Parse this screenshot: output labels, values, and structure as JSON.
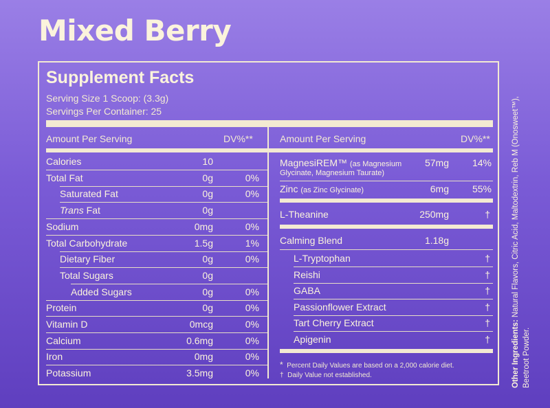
{
  "title": "Mixed Berry",
  "facts": {
    "heading": "Supplement Facts",
    "serving_size": "Serving Size 1 Scoop: (3.3g)",
    "servings_per_container": "Servings Per Container: 25"
  },
  "left": {
    "header_amount": "Amount Per Serving",
    "header_dv": "DV%**",
    "rows": [
      {
        "name": "Calories",
        "amount": "10",
        "dv": ""
      },
      {
        "name": "Total Fat",
        "amount": "0g",
        "dv": "0%"
      },
      {
        "name": "Saturated Fat",
        "amount": "0g",
        "dv": "0%"
      },
      {
        "name_italic": "Trans",
        "name_rest": " Fat",
        "amount": "0g",
        "dv": ""
      },
      {
        "name": "Sodium",
        "amount": "0mg",
        "dv": "0%"
      },
      {
        "name": "Total Carbohydrate",
        "amount": "1.5g",
        "dv": "1%"
      },
      {
        "name": "Dietary Fiber",
        "amount": "0g",
        "dv": "0%"
      },
      {
        "name": "Total Sugars",
        "amount": "0g",
        "dv": ""
      },
      {
        "name": "Added Sugars",
        "amount": "0g",
        "dv": "0%"
      },
      {
        "name": "Protein",
        "amount": "0g",
        "dv": "0%"
      },
      {
        "name": "Vitamin D",
        "amount": "0mcg",
        "dv": "0%"
      },
      {
        "name": "Calcium",
        "amount": "0.6mg",
        "dv": "0%"
      },
      {
        "name": "Iron",
        "amount": "0mg",
        "dv": "0%"
      },
      {
        "name": "Potassium",
        "amount": "3.5mg",
        "dv": "0%"
      }
    ]
  },
  "right": {
    "header_amount": "Amount Per Serving",
    "header_dv": "DV%**",
    "magnesium": {
      "name": "MagnesiREM™",
      "detail": "(as Magnesium",
      "detail2": "Glycinate, Magnesium Taurate)",
      "amount": "57mg",
      "dv": "14%"
    },
    "zinc": {
      "name": "Zinc",
      "detail": "(as Zinc Glycinate)",
      "amount": "6mg",
      "dv": "55%"
    },
    "theanine": {
      "name": "L-Theanine",
      "amount": "250mg",
      "dv": "†"
    },
    "blend": {
      "name": "Calming Blend",
      "amount": "1.18g"
    },
    "blend_items": [
      {
        "name": "L-Tryptophan",
        "dv": "†"
      },
      {
        "name": "Reishi",
        "dv": "†"
      },
      {
        "name": "GABA",
        "dv": "†"
      },
      {
        "name": "Passionflower Extract",
        "dv": "†"
      },
      {
        "name": "Tart Cherry Extract",
        "dv": "†"
      },
      {
        "name": "Apigenin",
        "dv": "†"
      }
    ],
    "foot_star_symbol": "*",
    "foot_star": "Percent Daily Values are based on a 2,000 calorie diet.",
    "foot_dagger_symbol": "†",
    "foot_dagger": "Daily Value not established."
  },
  "other": {
    "label": "Other Ingredients:",
    "text": " Natural Flavors, Citric Acid, Maltodextrin, Reb M (Onosweet™), Beetroot Powder."
  }
}
